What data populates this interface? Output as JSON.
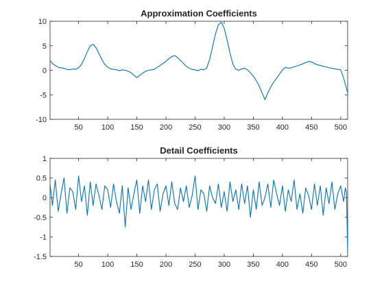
{
  "chart_data": [
    {
      "type": "line",
      "title": "Approximation Coefficients",
      "xlabel": "",
      "ylabel": "",
      "xlim": [
        1,
        512
      ],
      "ylim": [
        -10,
        10
      ],
      "xticks": [
        50,
        100,
        150,
        200,
        250,
        300,
        350,
        400,
        450,
        500
      ],
      "yticks": [
        10,
        5,
        0,
        -5,
        -10
      ],
      "xtick_labels": [
        "50",
        "100",
        "150",
        "200",
        "250",
        "300",
        "350",
        "400",
        "450",
        "500"
      ],
      "ytick_labels": [
        "10",
        "5",
        "0",
        "-5",
        "-10"
      ],
      "grid": false,
      "line_color": "#0072BD",
      "series": [
        {
          "x": [
            1,
            5,
            10,
            15,
            20,
            25,
            30,
            35,
            40,
            45,
            50,
            55,
            60,
            65,
            70,
            75,
            80,
            85,
            90,
            95,
            100,
            105,
            110,
            115,
            120,
            125,
            130,
            135,
            140,
            145,
            150,
            155,
            160,
            165,
            170,
            175,
            180,
            185,
            190,
            195,
            200,
            205,
            210,
            215,
            220,
            225,
            230,
            235,
            240,
            245,
            250,
            255,
            260,
            265,
            270,
            275,
            280,
            285,
            290,
            295,
            300,
            305,
            310,
            315,
            320,
            325,
            330,
            335,
            340,
            345,
            350,
            355,
            360,
            365,
            370,
            375,
            380,
            385,
            390,
            395,
            400,
            405,
            410,
            415,
            420,
            425,
            430,
            435,
            440,
            445,
            450,
            455,
            460,
            465,
            470,
            475,
            480,
            485,
            490,
            495,
            500,
            505,
            512
          ],
          "values": [
            2.0,
            1.4,
            1.0,
            0.6,
            0.5,
            0.4,
            0.2,
            0.1,
            0.3,
            0.2,
            0.5,
            1.2,
            2.4,
            3.8,
            5.0,
            5.3,
            4.6,
            3.4,
            2.2,
            1.2,
            0.6,
            0.3,
            0.2,
            0.1,
            -0.1,
            0.1,
            0.0,
            -0.2,
            -0.5,
            -1.0,
            -1.5,
            -1.0,
            -0.6,
            -0.2,
            0.0,
            0.1,
            0.2,
            0.6,
            1.0,
            1.4,
            1.8,
            2.4,
            2.8,
            3.0,
            2.6,
            2.0,
            1.4,
            0.8,
            0.4,
            0.2,
            0.1,
            -0.1,
            0.2,
            0.1,
            0.5,
            2.2,
            4.8,
            7.4,
            9.3,
            9.8,
            8.6,
            6.2,
            3.5,
            1.2,
            0.2,
            0.0,
            0.3,
            0.4,
            0.1,
            -0.5,
            -1.2,
            -2.1,
            -3.2,
            -4.6,
            -6.0,
            -4.6,
            -3.4,
            -2.4,
            -1.6,
            -0.8,
            0.1,
            0.6,
            0.4,
            0.5,
            0.7,
            0.9,
            1.1,
            1.3,
            1.6,
            1.8,
            1.7,
            1.4,
            1.1,
            1.0,
            0.8,
            0.7,
            0.5,
            0.4,
            0.3,
            0.2,
            0.1,
            -1.6,
            -4.6
          ]
        }
      ]
    },
    {
      "type": "line",
      "title": "Detail Coefficients",
      "xlabel": "",
      "ylabel": "",
      "xlim": [
        1,
        512
      ],
      "ylim": [
        -1.5,
        1
      ],
      "xticks": [
        50,
        100,
        150,
        200,
        250,
        300,
        350,
        400,
        450,
        500
      ],
      "yticks": [
        1,
        0.5,
        0,
        -0.5,
        -1,
        -1.5
      ],
      "xtick_labels": [
        "50",
        "100",
        "150",
        "200",
        "250",
        "300",
        "350",
        "400",
        "450",
        "500"
      ],
      "ytick_labels": [
        "1",
        "0.5",
        "0",
        "-0.5",
        "-1",
        "-1.5"
      ],
      "grid": false,
      "line_color": "#0072BD",
      "series": [
        {
          "x": [
            1,
            5,
            10,
            15,
            20,
            25,
            30,
            35,
            40,
            45,
            50,
            55,
            60,
            65,
            70,
            75,
            80,
            85,
            90,
            95,
            100,
            105,
            110,
            115,
            120,
            125,
            130,
            135,
            140,
            145,
            150,
            155,
            160,
            165,
            170,
            175,
            180,
            185,
            190,
            195,
            200,
            205,
            210,
            215,
            220,
            225,
            230,
            235,
            240,
            245,
            250,
            255,
            260,
            265,
            270,
            275,
            280,
            285,
            290,
            295,
            300,
            305,
            310,
            315,
            320,
            325,
            330,
            335,
            340,
            345,
            350,
            355,
            360,
            365,
            370,
            375,
            380,
            385,
            390,
            395,
            400,
            405,
            410,
            415,
            420,
            425,
            430,
            435,
            440,
            445,
            450,
            455,
            460,
            465,
            470,
            475,
            480,
            485,
            490,
            495,
            500,
            505,
            508,
            510,
            512
          ],
          "values": [
            0.35,
            -0.2,
            0.45,
            -0.35,
            0.1,
            0.5,
            -0.4,
            0.25,
            0.15,
            -0.3,
            0.55,
            -0.1,
            0.3,
            -0.45,
            0.4,
            -0.2,
            0.35,
            0.05,
            -0.3,
            0.3,
            0.2,
            -0.25,
            0.35,
            -0.1,
            -0.4,
            0.3,
            -0.75,
            0.25,
            -0.3,
            0.1,
            0.45,
            -0.4,
            0.3,
            -0.1,
            0.45,
            -0.3,
            0.2,
            0.35,
            -0.35,
            0.1,
            0.3,
            -0.2,
            0.4,
            -0.15,
            -0.3,
            0.25,
            -0.1,
            0.3,
            -0.25,
            0.05,
            0.55,
            -0.3,
            0.2,
            0.1,
            -0.35,
            0.3,
            0.0,
            -0.15,
            0.35,
            -0.25,
            0.15,
            -0.35,
            0.4,
            -0.1,
            0.2,
            -0.3,
            0.35,
            -0.15,
            0.3,
            -0.5,
            0.2,
            -0.3,
            0.4,
            -0.2,
            0.0,
            0.35,
            -0.25,
            0.45,
            0.1,
            -0.2,
            0.3,
            -0.35,
            0.2,
            -0.1,
            0.45,
            -0.3,
            0.1,
            -0.4,
            0.25,
            0.05,
            -0.3,
            0.35,
            -0.2,
            0.3,
            -0.45,
            0.25,
            -0.15,
            0.4,
            -0.3,
            0.1,
            0.3,
            -0.1,
            0.25,
            0.1,
            -1.4
          ]
        }
      ]
    }
  ]
}
